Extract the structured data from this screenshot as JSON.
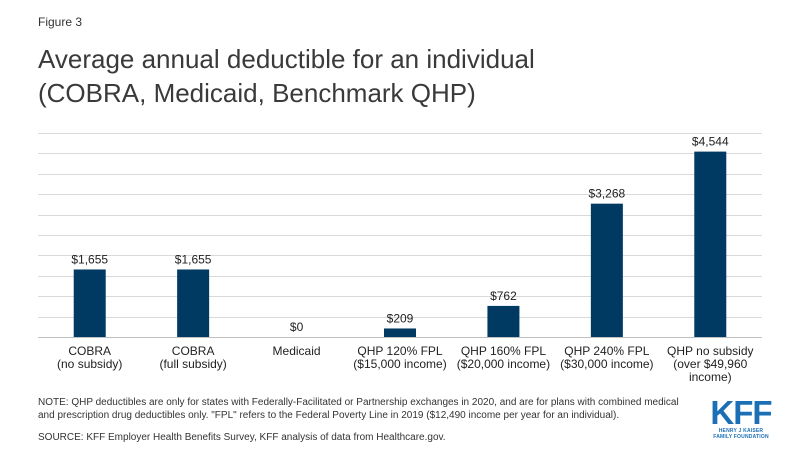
{
  "figure_label": "Figure 3",
  "title_line1": "Average annual deductible for an individual",
  "title_line2": "(COBRA, Medicaid, Benchmark QHP)",
  "note": "NOTE: QHP deductibles are only for states with Federally-Facilitated or Partnership exchanges in 2020, and are for plans with combined medical and prescription drug deductibles only. \"FPL\" refers to the Federal Poverty Line in 2019 ($12,490 income per year for an individual).",
  "source": "SOURCE: KFF Employer Health Benefits Survey, KFF analysis of data from Healthcare.gov.",
  "logo": {
    "mark": "KFF",
    "line1": "HENRY J KAISER",
    "line2": "FAMILY FOUNDATION"
  },
  "colors": {
    "bar": "#003a63",
    "grid": "#d9d9d9",
    "axis": "#bfbfbf",
    "logo": "#1b6fb5"
  },
  "chart_data": {
    "type": "bar",
    "categories": [
      [
        "COBRA",
        "(no subsidy)"
      ],
      [
        "COBRA",
        "(full subsidy)"
      ],
      [
        "Medicaid"
      ],
      [
        "QHP 120% FPL",
        "($15,000 income)"
      ],
      [
        "QHP 160% FPL",
        "($20,000 income)"
      ],
      [
        "QHP 240% FPL",
        "($30,000 income)"
      ],
      [
        "QHP no subsidy",
        "(over $49,960",
        "income)"
      ]
    ],
    "values": [
      1655,
      1655,
      0,
      209,
      762,
      3268,
      4544
    ],
    "data_labels": [
      "$1,655",
      "$1,655",
      "$0",
      "$209",
      "$762",
      "$3,268",
      "$4,544"
    ],
    "ylim": [
      0,
      5000
    ],
    "grid": true,
    "legend": false
  }
}
